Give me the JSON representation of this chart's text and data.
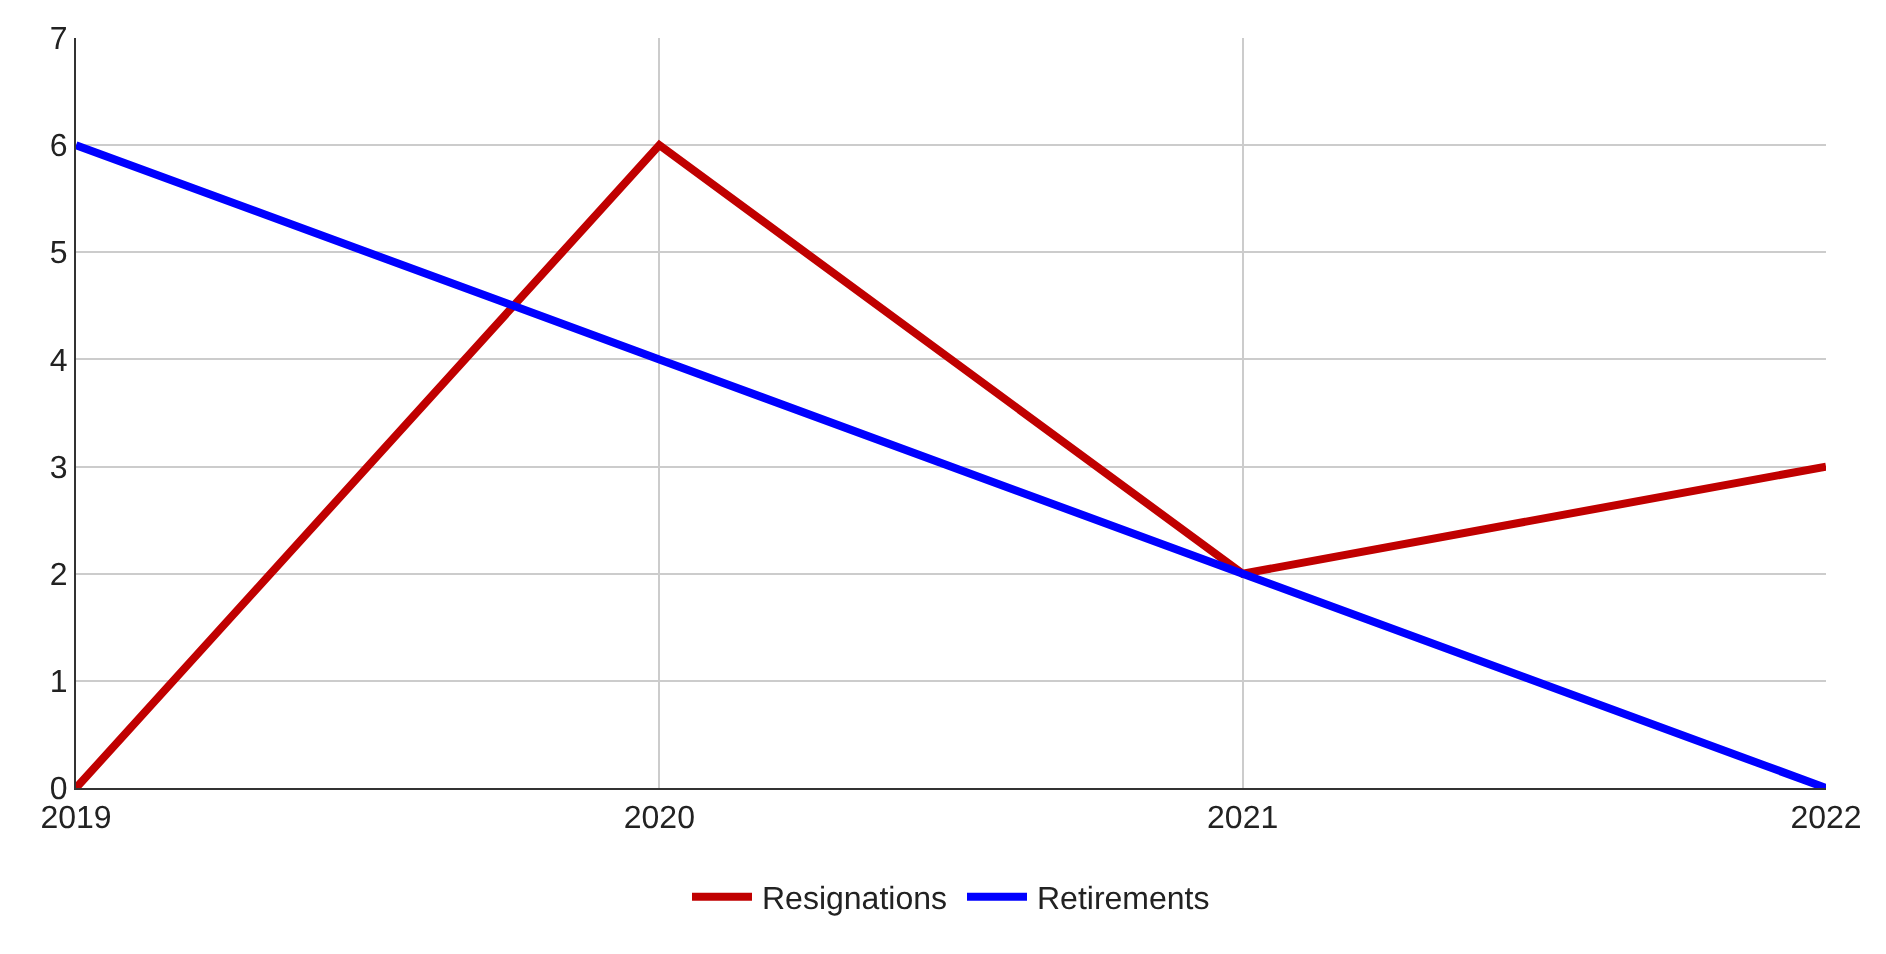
{
  "chart_data": {
    "type": "line",
    "x": [
      2019,
      2020,
      2021,
      2022
    ],
    "series": [
      {
        "name": "Resignations",
        "color": "#c00000",
        "values": [
          0,
          6,
          2,
          3
        ]
      },
      {
        "name": "Retirements",
        "color": "#0000ff",
        "values": [
          6,
          4,
          2,
          0
        ]
      }
    ],
    "xlim": [
      2019,
      2022
    ],
    "xticks": [
      2019,
      2020,
      2021,
      2022
    ],
    "ylim": [
      0,
      7
    ],
    "yticks": [
      0,
      1,
      2,
      3,
      4,
      5,
      6,
      7
    ],
    "grid": true,
    "legend": "bottom",
    "marker": "none",
    "line_style": "solid"
  }
}
